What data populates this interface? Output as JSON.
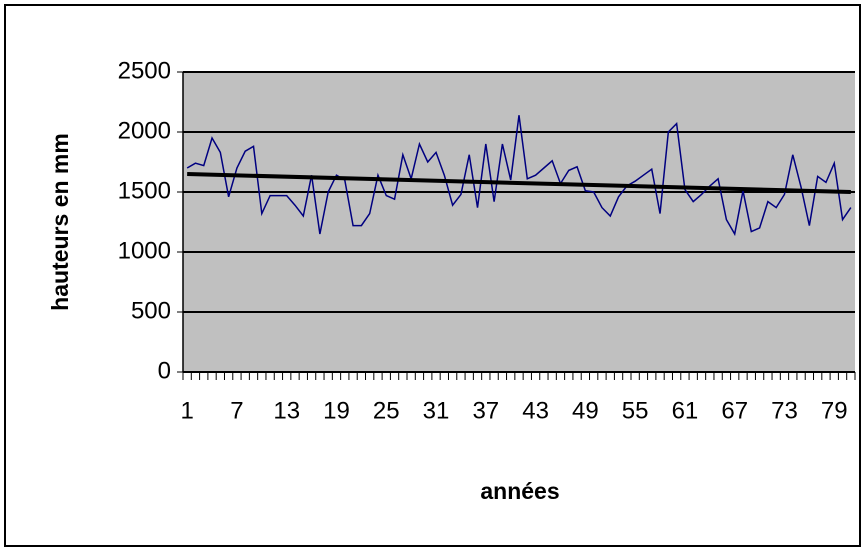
{
  "chart_data": {
    "type": "line",
    "x_label": "années",
    "y_label": "hauteurs en mm",
    "categories": [
      1,
      null,
      null,
      null,
      null,
      null,
      7,
      null,
      null,
      null,
      null,
      null,
      13,
      null,
      null,
      null,
      null,
      null,
      19,
      null,
      null,
      null,
      null,
      null,
      25,
      null,
      null,
      null,
      null,
      null,
      31,
      null,
      null,
      null,
      null,
      null,
      37,
      null,
      null,
      null,
      null,
      null,
      43,
      null,
      null,
      null,
      null,
      null,
      49,
      null,
      null,
      null,
      null,
      null,
      55,
      null,
      null,
      null,
      null,
      null,
      61,
      null,
      null,
      null,
      null,
      null,
      67,
      null,
      null,
      null,
      null,
      null,
      73,
      null,
      null,
      null,
      null,
      null,
      79,
      null,
      null
    ],
    "series": [
      {
        "color": "#000080",
        "values": [
          1700,
          1740,
          1720,
          1950,
          1830,
          1460,
          1700,
          1840,
          1880,
          1320,
          1470,
          1470,
          1470,
          1390,
          1300,
          1640,
          1150,
          1500,
          1640,
          1600,
          1220,
          1220,
          1320,
          1640,
          1470,
          1440,
          1810,
          1610,
          1900,
          1750,
          1830,
          1640,
          1390,
          1480,
          1810,
          1370,
          1900,
          1420,
          1900,
          1600,
          2140,
          1610,
          1640,
          1700,
          1760,
          1570,
          1680,
          1710,
          1510,
          1500,
          1370,
          1300,
          1460,
          1550,
          1590,
          1640,
          1690,
          1320,
          2000,
          2070,
          1520,
          1420,
          1480,
          1550,
          1610,
          1270,
          1150,
          1510,
          1170,
          1200,
          1420,
          1370,
          1480,
          1810,
          1540,
          1220,
          1630,
          1580,
          1740,
          1270,
          1370
        ]
      }
    ],
    "trend": {
      "color": "#000000",
      "start": 1650,
      "end": 1500
    },
    "ylim": [
      0,
      2500
    ],
    "yticks": [
      0,
      500,
      1000,
      1500,
      2000,
      2500
    ],
    "grid": true,
    "plot_color": "#c0c0c0"
  }
}
